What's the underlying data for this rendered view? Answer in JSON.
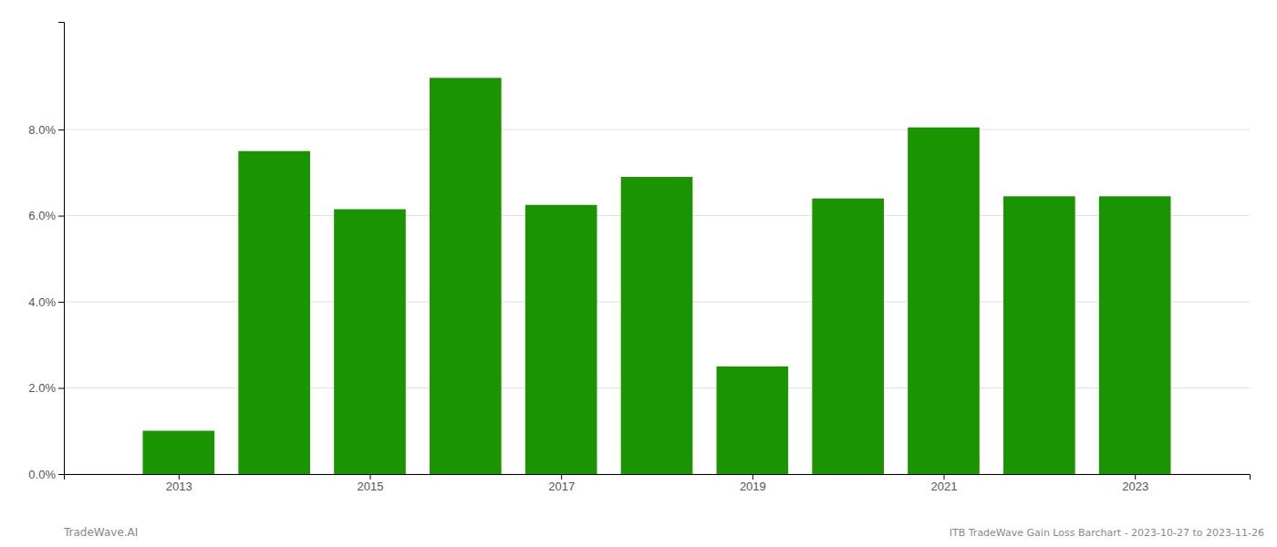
{
  "chart_data": {
    "type": "bar",
    "x": [
      2013,
      2014,
      2015,
      2016,
      2017,
      2018,
      2019,
      2020,
      2021,
      2022,
      2023
    ],
    "values": [
      0.01005,
      0.075,
      0.0615,
      0.092,
      0.0625,
      0.069,
      0.025,
      0.064,
      0.0805,
      0.0645,
      0.0645
    ],
    "color": "#1a9400",
    "xlim": [
      2011.8,
      2024.2
    ],
    "xticks": [
      2013,
      2015,
      2017,
      2019,
      2021,
      2023
    ],
    "ylim": [
      0,
      0.105
    ],
    "yticks": [
      {
        "value": 0.0,
        "label": "0.0%"
      },
      {
        "value": 0.02,
        "label": "2.0%"
      },
      {
        "value": 0.04,
        "label": "4.0%"
      },
      {
        "value": 0.06,
        "label": "6.0%"
      },
      {
        "value": 0.08,
        "label": "8.0%"
      }
    ],
    "grid": true,
    "annotations": [
      "TradeWave.AI",
      "ITB TradeWave Gain Loss Barchart - 2023-10-27 to 2023-11-26"
    ]
  }
}
